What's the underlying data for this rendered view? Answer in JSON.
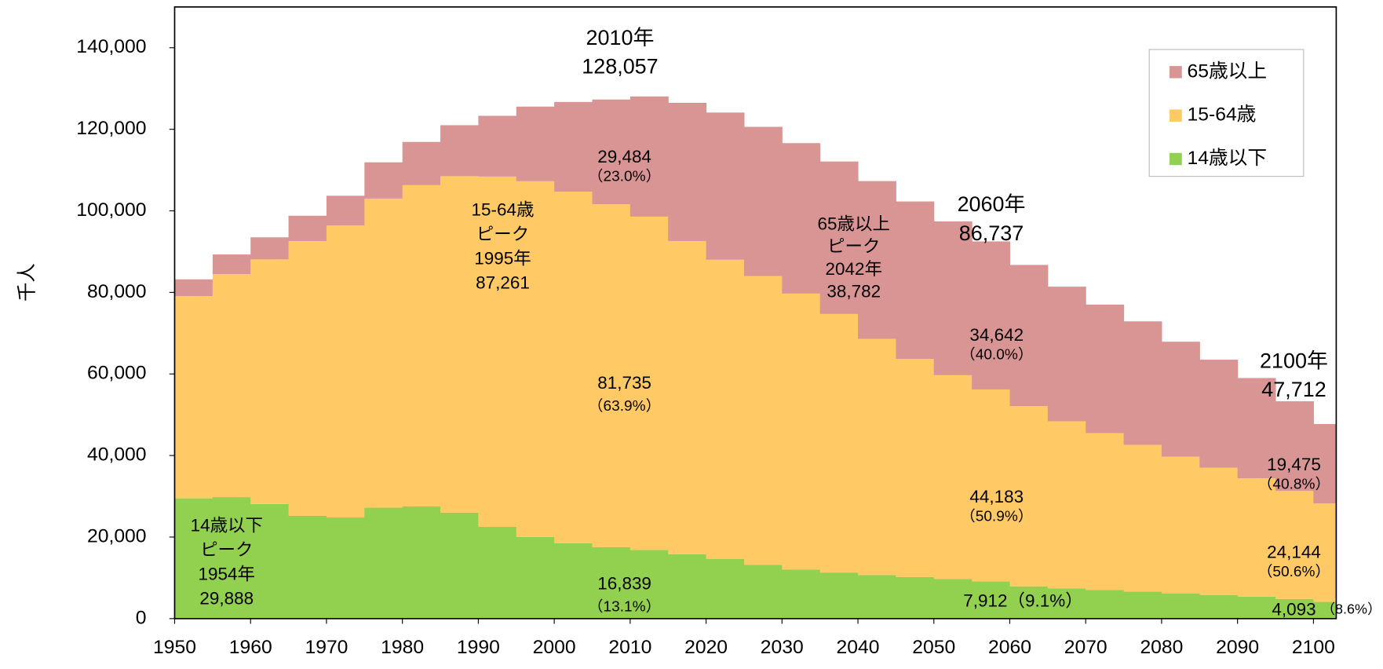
{
  "chart_data": {
    "type": "stacked_bar",
    "y_label": "千人",
    "x": [
      1950,
      1955,
      1960,
      1965,
      1970,
      1975,
      1980,
      1985,
      1990,
      1995,
      2000,
      2005,
      2010,
      2015,
      2020,
      2025,
      2030,
      2035,
      2040,
      2045,
      2050,
      2055,
      2060,
      2065,
      2070,
      2075,
      2080,
      2085,
      2090,
      2095,
      2100
    ],
    "series": [
      {
        "name": "14歳以下",
        "color": "#92d050",
        "values": [
          29500,
          29800,
          28100,
          25200,
          24800,
          27200,
          27500,
          26000,
          22500,
          20000,
          18500,
          17500,
          16839,
          15800,
          14600,
          13200,
          12000,
          11300,
          10700,
          10200,
          9700,
          9100,
          7912,
          7400,
          7000,
          6600,
          6200,
          5800,
          5400,
          4800,
          4093
        ]
      },
      {
        "name": "15-64歳",
        "color": "#ffc966",
        "values": [
          49600,
          54700,
          60000,
          67400,
          71600,
          75800,
          78800,
          82500,
          85900,
          87261,
          86200,
          84100,
          81735,
          76800,
          73400,
          70800,
          67700,
          63400,
          57900,
          53500,
          50000,
          47100,
          44183,
          41000,
          38500,
          36000,
          33500,
          31200,
          29000,
          26500,
          24144
        ]
      },
      {
        "name": "65歳以上",
        "color": "#d99594",
        "values": [
          4100,
          4800,
          5400,
          6200,
          7300,
          8900,
          10600,
          12500,
          14900,
          18300,
          22000,
          25700,
          29484,
          33900,
          36100,
          36600,
          36900,
          37400,
          38700,
          38600,
          37700,
          36300,
          34642,
          33000,
          31500,
          30300,
          28200,
          26500,
          24600,
          22000,
          19475
        ]
      }
    ],
    "xlim": [
      1950,
      2103
    ],
    "xticks": [
      1950,
      1960,
      1970,
      1980,
      1990,
      2000,
      2010,
      2020,
      2030,
      2040,
      2050,
      2060,
      2070,
      2080,
      2090,
      2100
    ],
    "ylim": [
      0,
      150000
    ],
    "yticks": [
      0,
      {
        "value": 20000,
        "label": "20,000"
      },
      {
        "value": 40000,
        "label": "40,000"
      },
      {
        "value": 60000,
        "label": "60,000"
      },
      {
        "value": 80000,
        "label": "80,000"
      },
      {
        "value": 100000,
        "label": "100,000"
      },
      {
        "value": 120000,
        "label": "120,000"
      },
      {
        "value": 140000,
        "label": "140,000"
      }
    ],
    "legend": "top-right",
    "annotations": [
      {
        "lines": [
          "2010年",
          "128,057"
        ]
      },
      {
        "lines": [
          "29,484",
          "（23.0%）"
        ]
      },
      {
        "lines": [
          "15-64歳",
          "ピーク",
          "1995年",
          "87,261"
        ]
      },
      {
        "lines": [
          "81,735",
          "（63.9%）"
        ]
      },
      {
        "lines": [
          "65歳以上",
          "ピーク",
          "2042年",
          "38,782"
        ]
      },
      {
        "lines": [
          "2060年",
          "86,737"
        ]
      },
      {
        "lines": [
          "34,642",
          "（40.0%）"
        ]
      },
      {
        "lines": [
          "2100年",
          "47,712"
        ]
      },
      {
        "lines": [
          "19,475",
          "（40.8%）"
        ]
      },
      {
        "lines": [
          "44,183",
          "（50.9%）"
        ]
      },
      {
        "lines": [
          "24,144",
          "（50.6%）"
        ]
      },
      {
        "lines": [
          "14歳以下",
          "ピーク",
          "1954年",
          "29,888"
        ]
      },
      {
        "lines": [
          "16,839",
          "（13.1%）"
        ]
      },
      {
        "lines": [
          "7,912（9.1%）"
        ]
      },
      {
        "lines": [
          "4,093"
        ]
      },
      {
        "lines": [
          "（8.6%）"
        ]
      }
    ]
  }
}
